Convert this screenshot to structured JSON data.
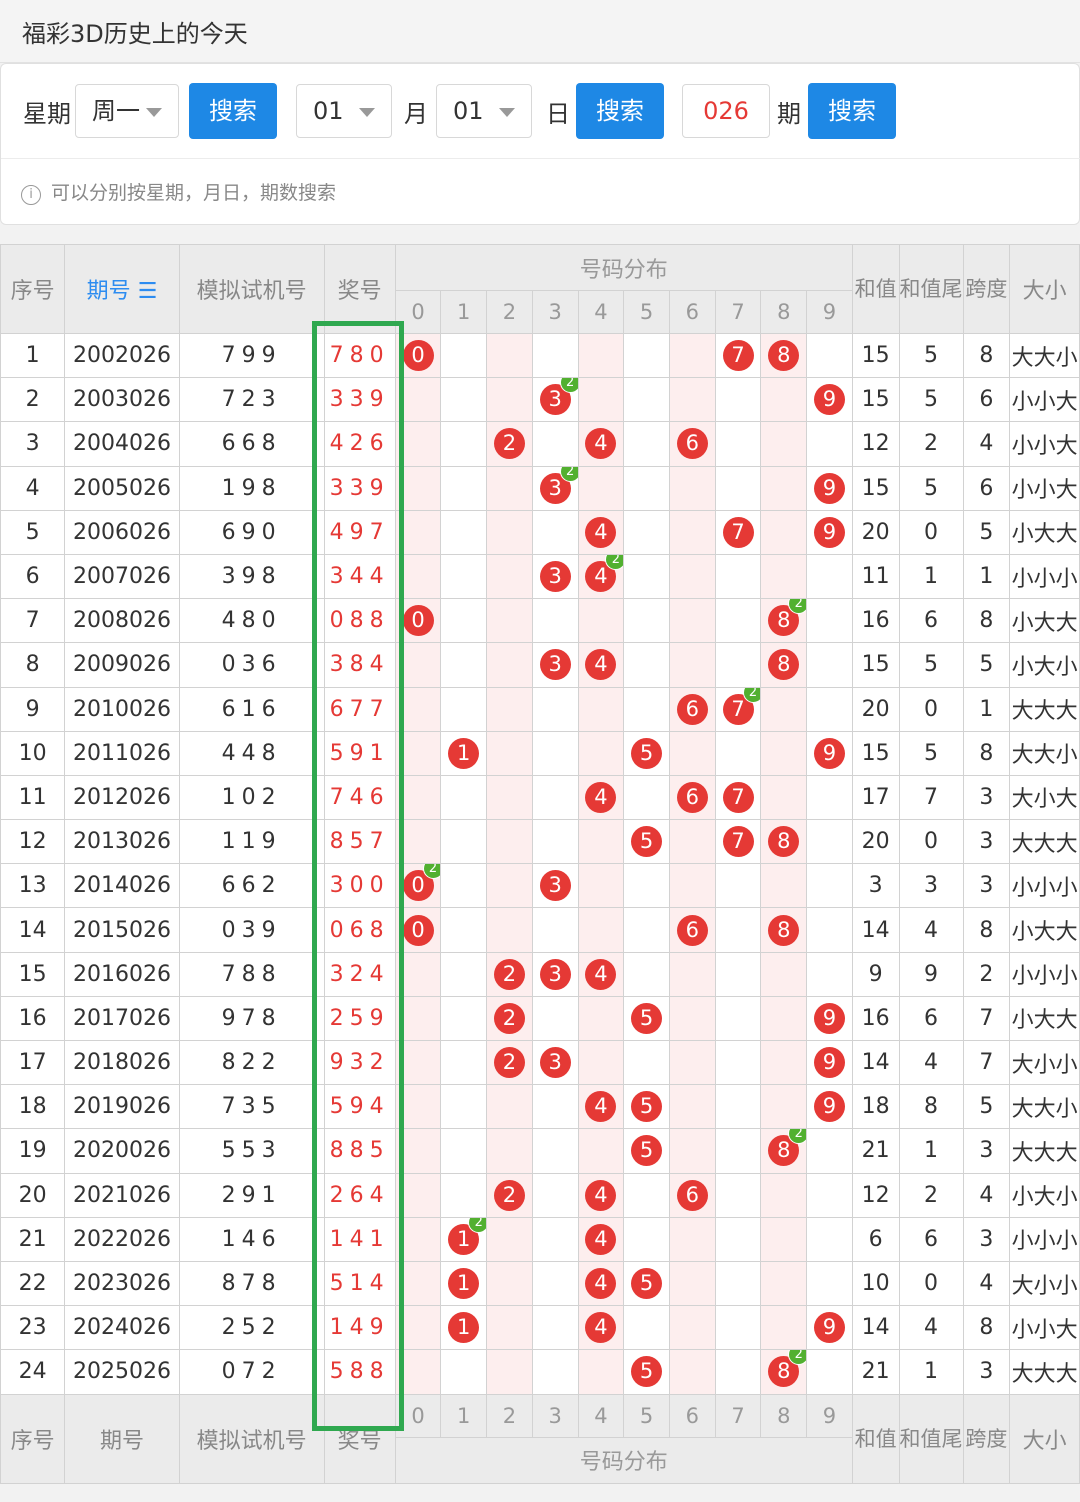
{
  "header": {
    "title": "福彩3D历史上的今天"
  },
  "search": {
    "weekday_label": "星期",
    "weekday_value": "周一",
    "search_label": "搜索",
    "month_value": "01",
    "month_label": "月",
    "day_value": "01",
    "day_label": "日",
    "issue_value": "026",
    "issue_label": "期",
    "hint": "可以分别按星期，月日，期数搜索"
  },
  "table": {
    "headers": {
      "index": "序号",
      "issue": "期号",
      "sim": "模拟试机号",
      "prize": "奖号",
      "dist": "号码分布",
      "sum": "和值",
      "sum_tail": "和值尾",
      "span": "跨度",
      "size": "大小"
    },
    "digits": [
      "0",
      "1",
      "2",
      "3",
      "4",
      "5",
      "6",
      "7",
      "8",
      "9"
    ],
    "rows": [
      {
        "idx": "1",
        "issue": "2002026",
        "sim": "799",
        "prize": "780",
        "sum": "15",
        "tail": "5",
        "span": "8",
        "size": "大大小"
      },
      {
        "idx": "2",
        "issue": "2003026",
        "sim": "723",
        "prize": "339",
        "sum": "15",
        "tail": "5",
        "span": "6",
        "size": "小小大"
      },
      {
        "idx": "3",
        "issue": "2004026",
        "sim": "668",
        "prize": "426",
        "sum": "12",
        "tail": "2",
        "span": "4",
        "size": "小小大"
      },
      {
        "idx": "4",
        "issue": "2005026",
        "sim": "198",
        "prize": "339",
        "sum": "15",
        "tail": "5",
        "span": "6",
        "size": "小小大"
      },
      {
        "idx": "5",
        "issue": "2006026",
        "sim": "690",
        "prize": "497",
        "sum": "20",
        "tail": "0",
        "span": "5",
        "size": "小大大"
      },
      {
        "idx": "6",
        "issue": "2007026",
        "sim": "398",
        "prize": "344",
        "sum": "11",
        "tail": "1",
        "span": "1",
        "size": "小小小"
      },
      {
        "idx": "7",
        "issue": "2008026",
        "sim": "480",
        "prize": "088",
        "sum": "16",
        "tail": "6",
        "span": "8",
        "size": "小大大"
      },
      {
        "idx": "8",
        "issue": "2009026",
        "sim": "036",
        "prize": "384",
        "sum": "15",
        "tail": "5",
        "span": "5",
        "size": "小大小"
      },
      {
        "idx": "9",
        "issue": "2010026",
        "sim": "616",
        "prize": "677",
        "sum": "20",
        "tail": "0",
        "span": "1",
        "size": "大大大"
      },
      {
        "idx": "10",
        "issue": "2011026",
        "sim": "448",
        "prize": "591",
        "sum": "15",
        "tail": "5",
        "span": "8",
        "size": "大大小"
      },
      {
        "idx": "11",
        "issue": "2012026",
        "sim": "102",
        "prize": "746",
        "sum": "17",
        "tail": "7",
        "span": "3",
        "size": "大小大"
      },
      {
        "idx": "12",
        "issue": "2013026",
        "sim": "119",
        "prize": "857",
        "sum": "20",
        "tail": "0",
        "span": "3",
        "size": "大大大"
      },
      {
        "idx": "13",
        "issue": "2014026",
        "sim": "662",
        "prize": "300",
        "sum": "3",
        "tail": "3",
        "span": "3",
        "size": "小小小"
      },
      {
        "idx": "14",
        "issue": "2015026",
        "sim": "039",
        "prize": "068",
        "sum": "14",
        "tail": "4",
        "span": "8",
        "size": "小大大"
      },
      {
        "idx": "15",
        "issue": "2016026",
        "sim": "788",
        "prize": "324",
        "sum": "9",
        "tail": "9",
        "span": "2",
        "size": "小小小"
      },
      {
        "idx": "16",
        "issue": "2017026",
        "sim": "978",
        "prize": "259",
        "sum": "16",
        "tail": "6",
        "span": "7",
        "size": "小大大"
      },
      {
        "idx": "17",
        "issue": "2018026",
        "sim": "822",
        "prize": "932",
        "sum": "14",
        "tail": "4",
        "span": "7",
        "size": "大小小"
      },
      {
        "idx": "18",
        "issue": "2019026",
        "sim": "735",
        "prize": "594",
        "sum": "18",
        "tail": "8",
        "span": "5",
        "size": "大大小"
      },
      {
        "idx": "19",
        "issue": "2020026",
        "sim": "553",
        "prize": "885",
        "sum": "21",
        "tail": "1",
        "span": "3",
        "size": "大大大"
      },
      {
        "idx": "20",
        "issue": "2021026",
        "sim": "291",
        "prize": "264",
        "sum": "12",
        "tail": "2",
        "span": "4",
        "size": "小大小"
      },
      {
        "idx": "21",
        "issue": "2022026",
        "sim": "146",
        "prize": "141",
        "sum": "6",
        "tail": "6",
        "span": "3",
        "size": "小小小"
      },
      {
        "idx": "22",
        "issue": "2023026",
        "sim": "878",
        "prize": "514",
        "sum": "10",
        "tail": "0",
        "span": "4",
        "size": "大小小"
      },
      {
        "idx": "23",
        "issue": "2024026",
        "sim": "252",
        "prize": "149",
        "sum": "14",
        "tail": "4",
        "span": "8",
        "size": "小小大"
      },
      {
        "idx": "24",
        "issue": "2025026",
        "sim": "072",
        "prize": "588",
        "sum": "21",
        "tail": "1",
        "span": "3",
        "size": "大大大"
      }
    ]
  },
  "colors": {
    "ball": "#e53935",
    "repeat_badge": "#52b030",
    "button": "#1e88e5",
    "highlight": "#2fa84f"
  }
}
